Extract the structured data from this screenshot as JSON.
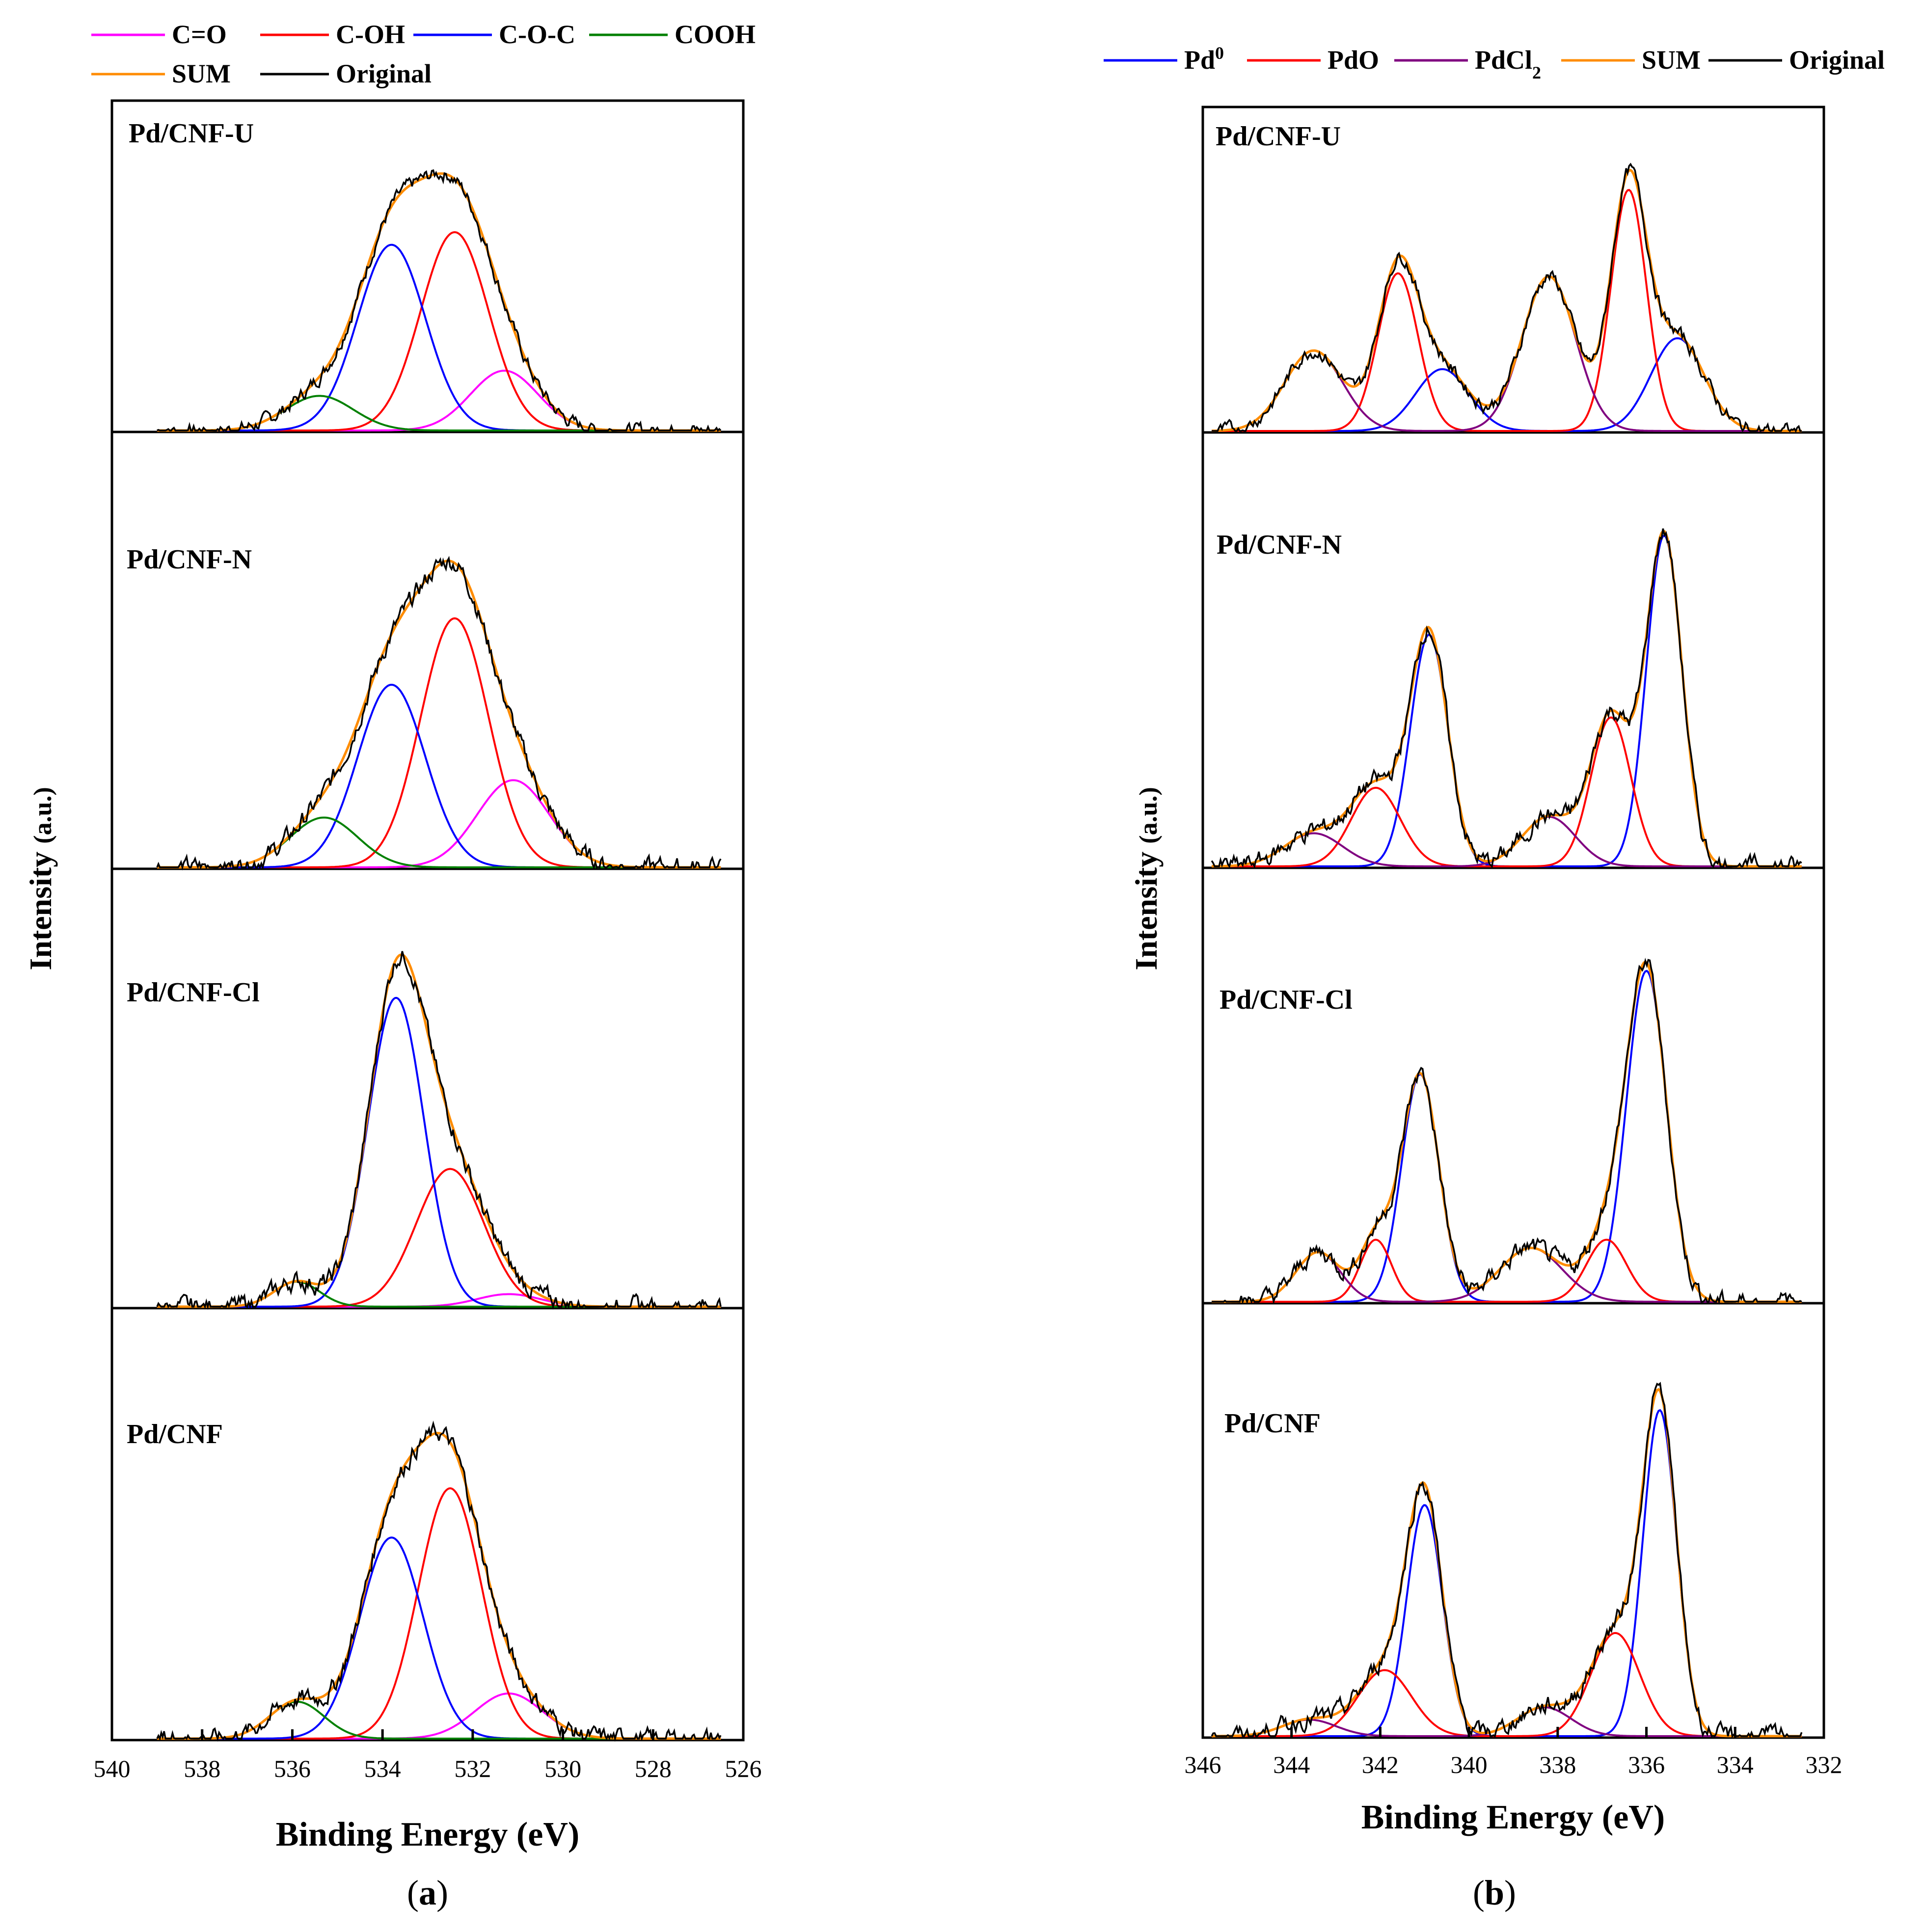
{
  "chart_data": [
    {
      "id": "a",
      "type": "line",
      "panel_label": "a",
      "xlabel": "Binding Energy (eV)",
      "ylabel": {
        "main": "Intensity",
        "unit": "(a.u.)"
      },
      "xlim": [
        540,
        526
      ],
      "xticks": [
        "540",
        "538",
        "536",
        "534",
        "532",
        "530",
        "528",
        "526"
      ],
      "legend": [
        {
          "name": "C=O",
          "color": "#ff00ff"
        },
        {
          "name": "C-OH",
          "color": "#ff0000"
        },
        {
          "name": "C-O-C",
          "color": "#0000ff"
        },
        {
          "name": "COOH",
          "color": "#008000"
        },
        {
          "name": "SUM",
          "color": "#ff8c00"
        },
        {
          "name": "Original",
          "color": "#000000"
        }
      ],
      "range": [
        539,
        526.5
      ],
      "subplots": [
        {
          "title": "Pd/CNF-U",
          "peaks": {
            "C=O": [
              531.3,
              0.19,
              0.75
            ],
            "C-OH": [
              532.4,
              0.63,
              0.75
            ],
            "C-O-C": [
              533.8,
              0.59,
              0.75
            ],
            "COOH": [
              535.4,
              0.11,
              0.75
            ]
          }
        },
        {
          "title": "Pd/CNF-N",
          "peaks": {
            "C=O": [
              531.1,
              0.21,
              0.8
            ],
            "C-OH": [
              532.4,
              0.6,
              0.75
            ],
            "C-O-C": [
              533.8,
              0.44,
              0.75
            ],
            "COOH": [
              535.3,
              0.12,
              0.75
            ]
          }
        },
        {
          "title": "Pd/CNF-Cl",
          "peaks": {
            "C=O": [
              531.2,
              0.03,
              0.7
            ],
            "C-OH": [
              532.5,
              0.33,
              0.75
            ],
            "C-O-C": [
              533.7,
              0.74,
              0.62
            ],
            "COOH": [
              535.9,
              0.06,
              0.5
            ]
          }
        },
        {
          "title": "Pd/CNF",
          "peaks": {
            "C=O": [
              531.2,
              0.11,
              0.75
            ],
            "C-OH": [
              532.5,
              0.61,
              0.7
            ],
            "C-O-C": [
              533.8,
              0.49,
              0.7
            ],
            "COOH": [
              535.9,
              0.09,
              0.6
            ]
          }
        }
      ]
    },
    {
      "id": "b",
      "type": "line",
      "panel_label": "b",
      "xlabel": "Binding Energy (eV)",
      "ylabel": {
        "main": "Intensity",
        "unit": "(a.u.)"
      },
      "xlim": [
        346,
        332
      ],
      "xticks": [
        "346",
        "344",
        "342",
        "340",
        "338",
        "336",
        "334",
        "332"
      ],
      "legend": [
        {
          "name": "Pd",
          "sup": "0",
          "color": "#0000ff"
        },
        {
          "name": "PdO",
          "color": "#ff0000"
        },
        {
          "name": "PdCl",
          "sub": "2",
          "color": "#800080"
        },
        {
          "name": "SUM",
          "color": "#ff8c00"
        },
        {
          "name": "Original",
          "color": "#000000"
        }
      ],
      "range": [
        345.8,
        332.5
      ],
      "subplots": [
        {
          "title": "Pd/CNF-U",
          "peaks": {
            "Pd0": [
              [
                335.3,
                0.3,
                0.6
              ],
              [
                340.6,
                0.2,
                0.6
              ]
            ],
            "PdO": [
              [
                336.4,
                0.78,
                0.4
              ],
              [
                341.6,
                0.51,
                0.45
              ]
            ],
            "PdCl2": [
              [
                338.2,
                0.5,
                0.6
              ],
              [
                343.5,
                0.26,
                0.65
              ]
            ]
          }
        },
        {
          "title": "Pd/CNF-N",
          "peaks": {
            "Pd0": [
              [
                335.6,
                0.8,
                0.4
              ],
              [
                340.9,
                0.56,
                0.42
              ]
            ],
            "PdO": [
              [
                336.8,
                0.36,
                0.45
              ],
              [
                342.1,
                0.19,
                0.55
              ]
            ],
            "PdCl2": [
              [
                338.2,
                0.12,
                0.6
              ],
              [
                343.5,
                0.08,
                0.65
              ]
            ]
          }
        },
        {
          "title": "Pd/CNF-Cl",
          "peaks": {
            "Pd0": [
              [
                336.0,
                0.8,
                0.45
              ],
              [
                341.1,
                0.55,
                0.42
              ]
            ],
            "PdO": [
              [
                336.9,
                0.15,
                0.45
              ],
              [
                342.1,
                0.15,
                0.35
              ]
            ],
            "PdCl2": [
              [
                338.6,
                0.13,
                0.7
              ],
              [
                343.4,
                0.12,
                0.5
              ]
            ]
          }
        },
        {
          "title": "Pd/CNF",
          "peaks": {
            "Pd0": [
              [
                335.7,
                0.79,
                0.38
              ],
              [
                341.0,
                0.56,
                0.4
              ]
            ],
            "PdO": [
              [
                336.7,
                0.25,
                0.55
              ],
              [
                341.9,
                0.16,
                0.6
              ]
            ],
            "PdCl2": [
              [
                338.3,
                0.07,
                0.6
              ],
              [
                343.6,
                0.04,
                0.6
              ]
            ]
          }
        }
      ]
    }
  ]
}
